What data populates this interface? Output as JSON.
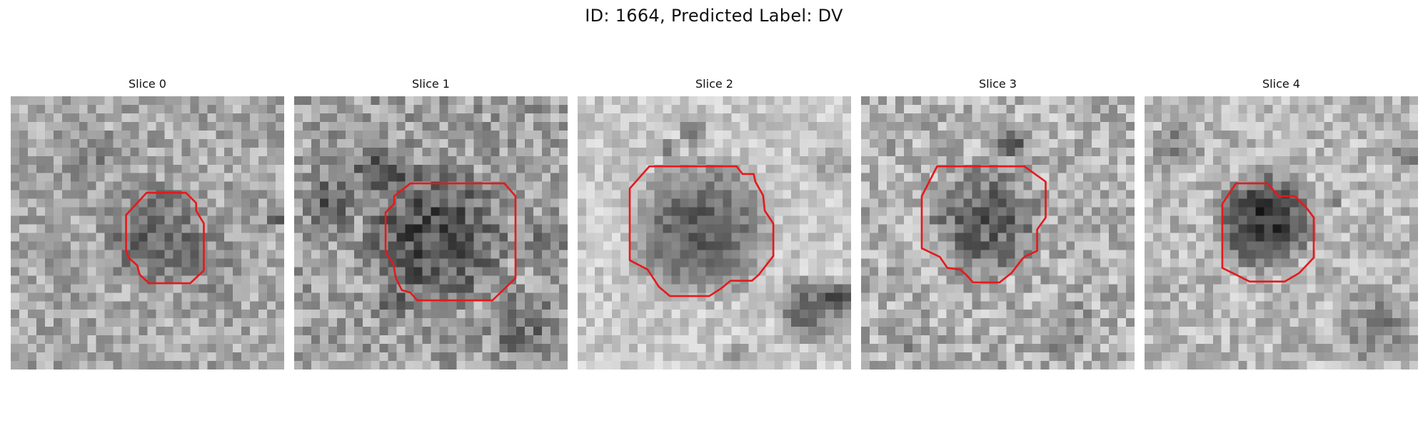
{
  "figure": {
    "title": "ID: 1664, Predicted Label: DV"
  },
  "slices": [
    {
      "label": "Slice 0",
      "contour_color": "#e41a1c"
    },
    {
      "label": "Slice 1",
      "contour_color": "#e41a1c"
    },
    {
      "label": "Slice 2",
      "contour_color": "#e41a1c"
    },
    {
      "label": "Slice 3",
      "contour_color": "#e41a1c"
    },
    {
      "label": "Slice 4",
      "contour_color": "#e41a1c"
    }
  ]
}
